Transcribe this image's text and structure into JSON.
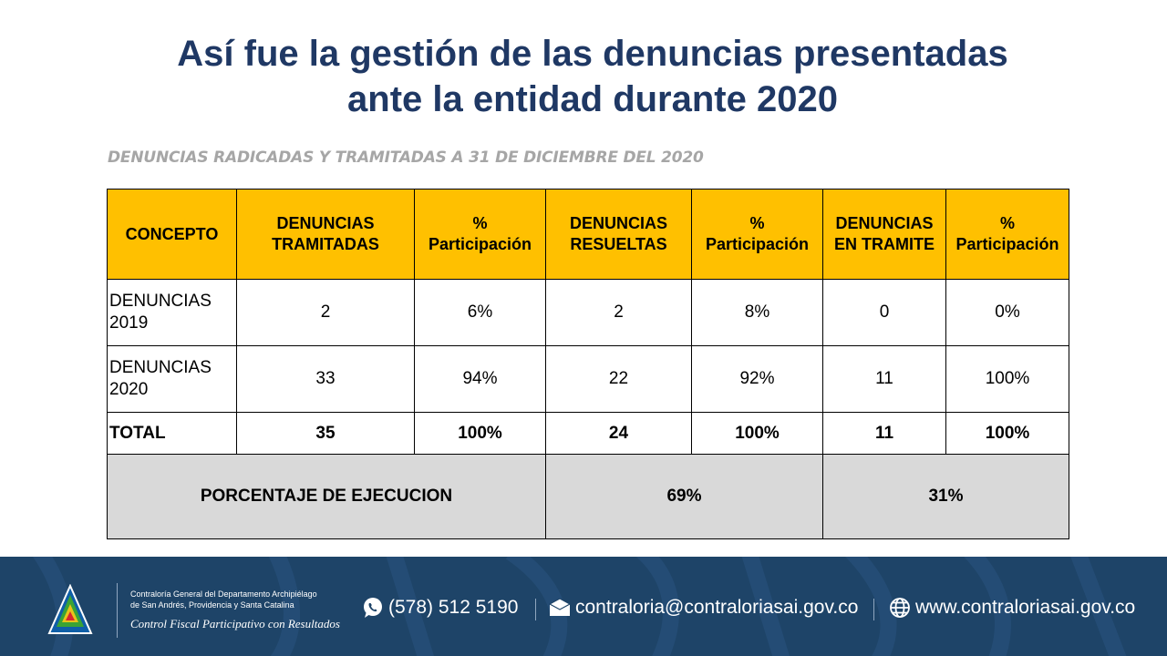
{
  "title": {
    "line1": "Así fue la gestión de las denuncias presentadas",
    "line2": "ante la entidad durante 2020"
  },
  "subtitle": "DENUNCIAS RADICADAS Y TRAMITADAS A 31 DE DICIEMBRE  DEL 2020",
  "table": {
    "headers": {
      "concepto": "CONCEPTO",
      "tramitadas": [
        "DENUNCIAS",
        "TRAMITADAS"
      ],
      "pct1": [
        "%",
        "Participación"
      ],
      "resueltas": [
        "DENUNCIAS",
        "RESUELTAS"
      ],
      "pct2": [
        "%",
        "Participación"
      ],
      "en_tramite": [
        "DENUNCIAS",
        "EN TRAMITE"
      ],
      "pct3": [
        "%",
        "Participación"
      ]
    },
    "rows": [
      {
        "concepto": [
          "DENUNCIAS",
          "2019"
        ],
        "tramitadas": "2",
        "pct1": "6%",
        "resueltas": "2",
        "pct2": "8%",
        "en_tramite": "0",
        "pct3": "0%"
      },
      {
        "concepto": [
          "DENUNCIAS",
          "2020"
        ],
        "tramitadas": "33",
        "pct1": "94%",
        "resueltas": "22",
        "pct2": "92%",
        "en_tramite": "11",
        "pct3": "100%"
      }
    ],
    "total": {
      "concepto": "TOTAL",
      "tramitadas": "35",
      "pct1": "100%",
      "resueltas": "24",
      "pct2": "100%",
      "en_tramite": "11",
      "pct3": "100%"
    },
    "execution": {
      "label": "PORCENTAJE  DE EJECUCION",
      "resueltas": "69%",
      "en_tramite": "31%"
    }
  },
  "footer": {
    "org_line1": "Contraloría General del Departamento Archipiélago",
    "org_line2": "de San Andrés, Providencia y Santa Catalina",
    "slogan": "Control Fiscal Participativo con Resultados",
    "phone": "(578) 512 5190",
    "email": "contraloria@contraloriasai.gov.co",
    "website": "www.contraloriasai.gov.co",
    "background_color": "#1e4468",
    "icons": [
      "whatsapp-icon",
      "envelope-icon",
      "globe-icon"
    ]
  },
  "colors": {
    "title": "#1f3864",
    "header_fill": "#ffc000",
    "execution_fill": "#d9d9d9",
    "subtitle": "#a6a6a6"
  }
}
